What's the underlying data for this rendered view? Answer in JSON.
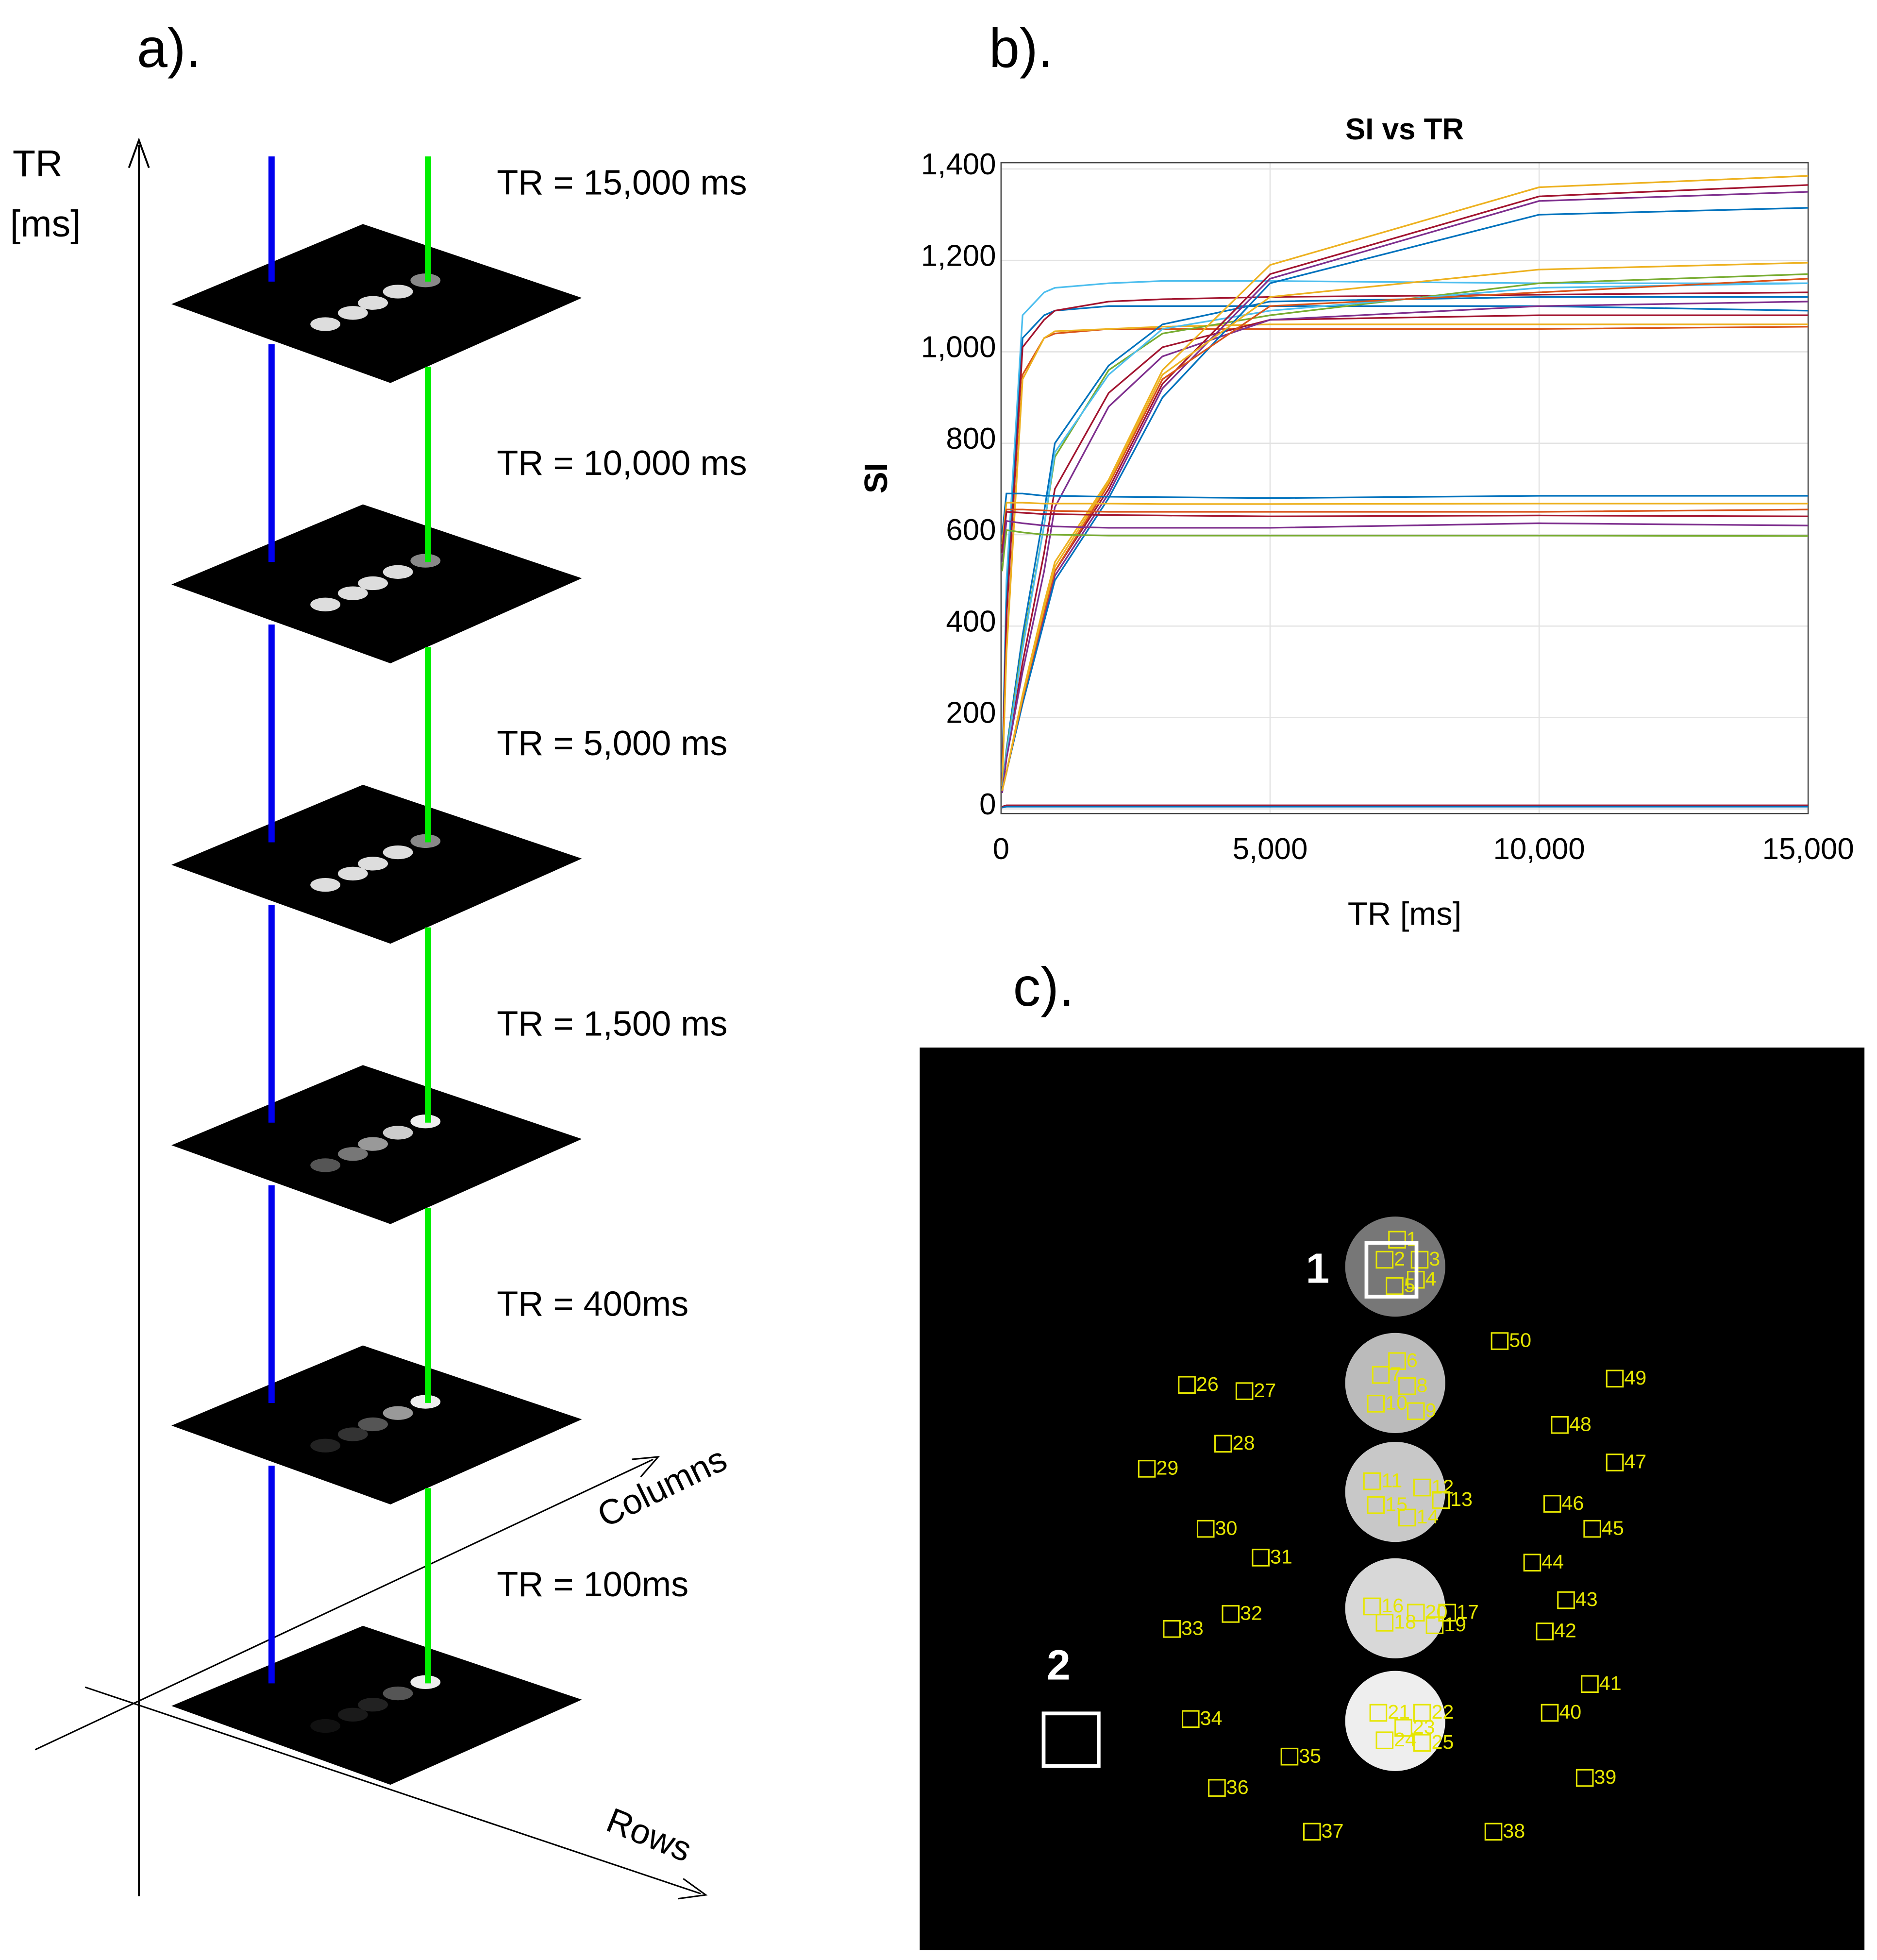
{
  "panel_labels": [
    "a).",
    "b).",
    "c)."
  ],
  "panel_a": {
    "axis_label": [
      "TR",
      "[ms]"
    ],
    "tr_labels": [
      "TR = 15,000 ms",
      "TR = 10,000 ms",
      "TR = 5,000 ms",
      "TR = 1,500 ms",
      "TR = 400ms",
      "TR = 100ms"
    ],
    "columns_label": "Columns",
    "rows_label": "Rows"
  },
  "panel_c": {
    "region_labels": [
      "1",
      "2"
    ],
    "roi_labels": [
      "1",
      "2",
      "3",
      "4",
      "5",
      "6",
      "7",
      "8",
      "9",
      "10",
      "11",
      "12",
      "13",
      "14",
      "15",
      "16",
      "17",
      "18",
      "19",
      "20",
      "21",
      "22",
      "23",
      "24",
      "25",
      "26",
      "27",
      "28",
      "29",
      "30",
      "31",
      "32",
      "33",
      "34",
      "35",
      "36",
      "37",
      "38",
      "39",
      "40",
      "41",
      "42",
      "43",
      "44",
      "45",
      "46",
      "47",
      "48",
      "49",
      "50"
    ]
  },
  "chart_data": {
    "type": "line",
    "title": "SI vs TR",
    "x_label": "TR [ms]",
    "y_label": "SI",
    "x": [
      20,
      100,
      400,
      800,
      1000,
      2000,
      3000,
      5000,
      10000,
      15000
    ],
    "xlim": [
      0,
      15000
    ],
    "ylim": [
      -10,
      1400
    ],
    "xticks": [
      0,
      {
        "value": 5000,
        "label": "5,000"
      },
      {
        "value": 10000,
        "label": "10,000"
      },
      {
        "value": 15000,
        "label": "15,000"
      }
    ],
    "yticks": [
      0,
      200,
      400,
      600,
      800,
      {
        "value": 1000,
        "label": "1,000"
      },
      {
        "value": 1200,
        "label": "1,200"
      },
      {
        "value": 1400,
        "label": "1,400"
      }
    ],
    "grid": true,
    "series": [
      {
        "color": "#4dbeee",
        "values": [
          80,
          500,
          1080,
          1130,
          1140,
          1150,
          1155,
          1155,
          1150,
          1150
        ]
      },
      {
        "color": "#0072bd",
        "values": [
          70,
          450,
          1030,
          1080,
          1090,
          1100,
          1100,
          1100,
          1100,
          1090
        ]
      },
      {
        "color": "#a2142f",
        "values": [
          60,
          420,
          1010,
          1070,
          1090,
          1110,
          1115,
          1120,
          1125,
          1130
        ]
      },
      {
        "color": "#d95319",
        "values": [
          50,
          350,
          950,
          1030,
          1040,
          1050,
          1050,
          1050,
          1050,
          1055
        ]
      },
      {
        "color": "#edb120",
        "values": [
          50,
          340,
          940,
          1030,
          1045,
          1050,
          1055,
          1060,
          1060,
          1060
        ]
      },
      {
        "color": "#0072bd",
        "values": [
          40,
          130,
          380,
          650,
          800,
          970,
          1060,
          1110,
          1120,
          1120
        ]
      },
      {
        "color": "#77ac30",
        "values": [
          40,
          125,
          360,
          620,
          770,
          960,
          1040,
          1080,
          1150,
          1170
        ]
      },
      {
        "color": "#a2142f",
        "values": [
          35,
          110,
          320,
          560,
          700,
          910,
          1010,
          1070,
          1080,
          1080
        ]
      },
      {
        "color": "#4dbeee",
        "values": [
          40,
          120,
          350,
          620,
          780,
          950,
          1050,
          1090,
          1140,
          1150
        ]
      },
      {
        "color": "#7e2f8e",
        "values": [
          35,
          110,
          300,
          520,
          660,
          880,
          990,
          1070,
          1100,
          1110
        ]
      },
      {
        "color": "#edb120",
        "values": [
          40,
          80,
          250,
          450,
          540,
          720,
          960,
          1190,
          1360,
          1385
        ]
      },
      {
        "color": "#a2142f",
        "values": [
          40,
          80,
          240,
          430,
          520,
          700,
          930,
          1170,
          1340,
          1365
        ]
      },
      {
        "color": "#7e2f8e",
        "values": [
          40,
          80,
          235,
          420,
          510,
          690,
          920,
          1160,
          1330,
          1350
        ]
      },
      {
        "color": "#0072bd",
        "values": [
          40,
          80,
          230,
          410,
          500,
          680,
          900,
          1150,
          1300,
          1315
        ]
      },
      {
        "color": "#d95319",
        "values": [
          40,
          80,
          240,
          430,
          520,
          710,
          940,
          1100,
          1130,
          1160
        ]
      },
      {
        "color": "#edb120",
        "values": [
          40,
          80,
          245,
          440,
          530,
          715,
          950,
          1120,
          1180,
          1195
        ]
      },
      {
        "color": "#0072bd",
        "values": [
          600,
          690,
          690,
          685,
          685,
          683,
          682,
          680,
          685,
          685
        ]
      },
      {
        "color": "#edb120",
        "values": [
          580,
          670,
          670,
          668,
          668,
          668,
          667,
          667,
          668,
          668
        ]
      },
      {
        "color": "#d95319",
        "values": [
          570,
          655,
          655,
          653,
          652,
          650,
          650,
          650,
          650,
          655
        ]
      },
      {
        "color": "#a2142f",
        "values": [
          560,
          650,
          648,
          645,
          645,
          643,
          642,
          640,
          642,
          640
        ]
      },
      {
        "color": "#7e2f8e",
        "values": [
          540,
          630,
          625,
          620,
          618,
          615,
          615,
          615,
          625,
          620
        ]
      },
      {
        "color": "#77ac30",
        "values": [
          520,
          610,
          605,
          600,
          600,
          598,
          598,
          598,
          598,
          597
        ]
      },
      {
        "color": "#a2142f",
        "values": [
          5,
          8,
          8,
          8,
          8,
          8,
          8,
          8,
          8,
          8
        ]
      },
      {
        "color": "#0072bd",
        "values": [
          3,
          5,
          5,
          5,
          5,
          5,
          5,
          5,
          5,
          5
        ]
      }
    ]
  }
}
